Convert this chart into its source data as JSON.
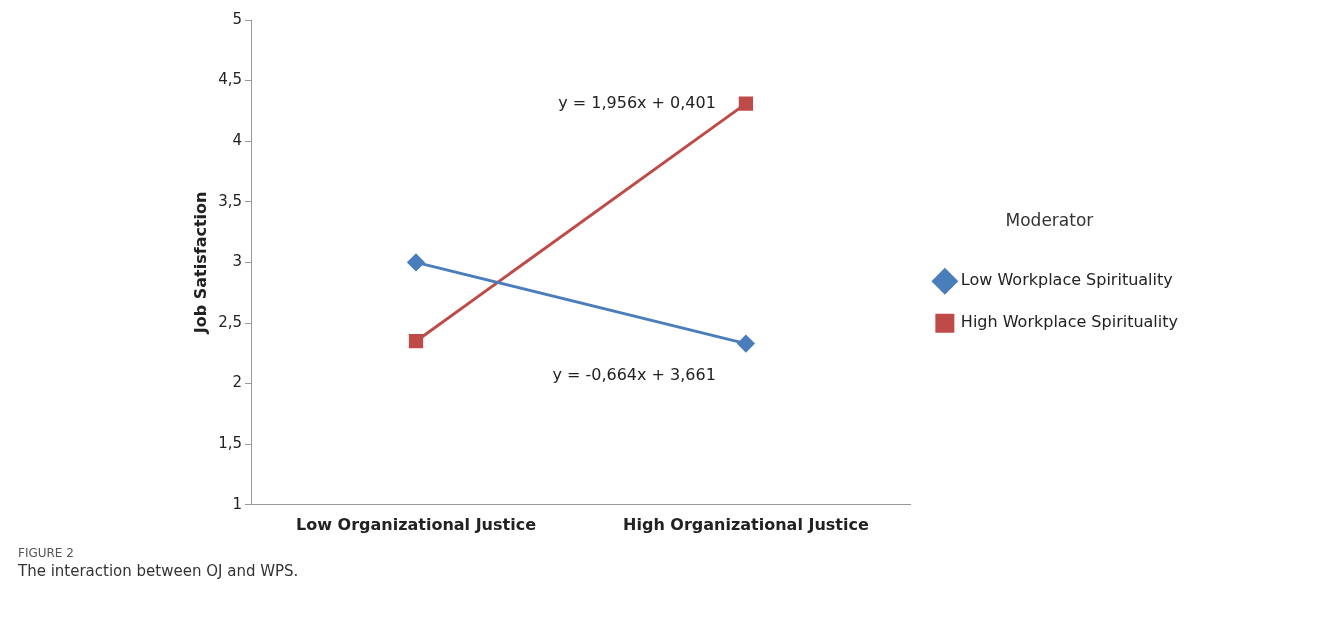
{
  "chart_data": {
    "type": "line",
    "ylabel": "Job Satisfaction",
    "categories": [
      "Low Organizational Justice",
      "High Organizational Justice"
    ],
    "series": [
      {
        "name": "Low Workplace Spirituality",
        "color": "#4a7ebb",
        "marker": "diamond",
        "values": [
          3.0,
          2.33
        ]
      },
      {
        "name": "High Workplace Spirituality",
        "color": "#be4b48",
        "marker": "square",
        "values": [
          2.35,
          4.31
        ]
      }
    ],
    "ylim": [
      1,
      5
    ],
    "yticks": [
      1,
      {
        "value": 1.5,
        "label": "1,5"
      },
      2,
      {
        "value": 2.5,
        "label": "2,5"
      },
      3,
      {
        "value": 3.5,
        "label": "3,5"
      },
      4,
      {
        "value": 4.5,
        "label": "4,5"
      },
      5
    ],
    "grid": false,
    "legend": "right",
    "legend_title": "Moderator",
    "annotations": [
      {
        "text": "y = -0,664x + 3,661",
        "x": "High Organizational Justice",
        "y": 2.33
      },
      {
        "text": "y = 1,956x + 0,401",
        "x": "High Organizational Justice",
        "y": 4.31
      },
      "FIGURE 2",
      "The interaction between OJ and WPS."
    ]
  }
}
